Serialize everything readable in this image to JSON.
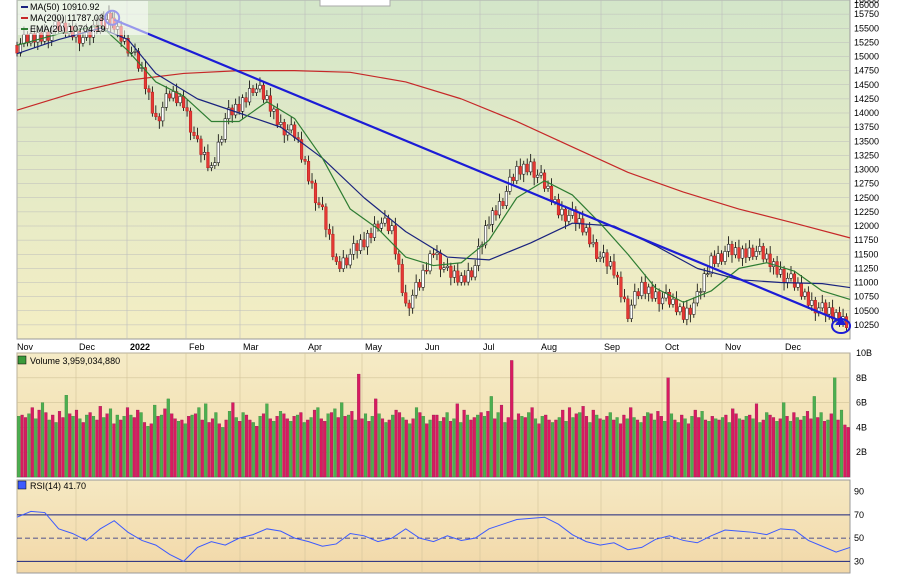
{
  "chart_data": [
    {
      "type": "line",
      "panel": "price",
      "y_axis": "right",
      "ylim": [
        10000,
        16000
      ],
      "y_ticks": [
        10250,
        10500,
        10750,
        11000,
        11250,
        11500,
        11750,
        12000,
        12250,
        12500,
        12750,
        13000,
        13250,
        13500,
        13750,
        14000,
        14250,
        14500,
        14750,
        15000,
        15250,
        15500,
        15750,
        16000
      ],
      "y_tick_labels": [
        "10250",
        "10500",
        "10750",
        "11000",
        "11250",
        "11500",
        "11750",
        "12000",
        "12250",
        "12500",
        "12750",
        "13000",
        "13250",
        "13500",
        "13750",
        "14000",
        "14250",
        "14500",
        "14750",
        "15000",
        "15250",
        "15500",
        "15750",
        "16000"
      ],
      "x_tick_labels": [
        "Nov",
        "Dec",
        "2022",
        "Feb",
        "Mar",
        "Apr",
        "May",
        "Jun",
        "Jul",
        "Aug",
        "Sep",
        "Oct",
        "Nov",
        "Dec"
      ],
      "legend": [
        {
          "label": "MA(50) 10910.92",
          "color": "#1a237e"
        },
        {
          "label": "MA(200) 11787.03",
          "color": "#c62828"
        },
        {
          "label": "EMA(20) 10704.19",
          "color": "#2e7d32"
        }
      ],
      "x_range": [
        0,
        60
      ],
      "series": [
        {
          "name": "Price",
          "color": "#000000",
          "x": [
            0,
            1,
            2,
            3,
            4,
            5,
            6,
            6.5,
            7,
            8,
            9,
            10,
            11,
            12,
            13,
            14,
            15,
            16,
            17,
            18,
            19,
            20,
            21,
            22,
            23,
            24,
            25,
            26,
            27,
            28,
            29,
            30,
            31,
            32,
            33,
            34,
            35,
            36,
            37,
            38,
            39,
            40,
            41,
            42,
            43,
            44,
            45,
            46,
            47,
            48,
            49,
            50,
            51,
            52,
            53,
            54,
            55,
            56,
            57,
            58,
            59,
            60
          ],
          "values": [
            15200,
            15300,
            15400,
            15500,
            15450,
            15300,
            15600,
            15650,
            15550,
            15200,
            14700,
            13900,
            14300,
            14200,
            13400,
            13000,
            13900,
            14100,
            14500,
            14200,
            13800,
            13600,
            12900,
            12200,
            11300,
            11500,
            11700,
            12100,
            11900,
            10600,
            10950,
            11600,
            11150,
            11050,
            11300,
            12100,
            12500,
            12950,
            13100,
            12700,
            12300,
            12150,
            11900,
            11450,
            11200,
            10500,
            10900,
            10800,
            10650,
            10450,
            10700,
            11400,
            11550,
            11500,
            11600,
            11400,
            11200,
            10950,
            10700,
            10500,
            10400,
            10320
          ]
        },
        {
          "name": "MA(50)",
          "color": "#1a237e",
          "x": [
            0,
            3,
            6,
            8,
            10,
            13,
            16,
            19,
            22,
            25,
            28,
            31,
            34,
            37,
            40,
            43,
            46,
            49,
            52,
            55,
            58,
            60
          ],
          "values": [
            15050,
            15300,
            15500,
            15300,
            14700,
            14250,
            14000,
            13750,
            13200,
            12500,
            11900,
            11450,
            11400,
            11700,
            12050,
            12000,
            11650,
            11250,
            11050,
            11000,
            10980,
            10910
          ]
        },
        {
          "name": "MA(200)",
          "color": "#c62828",
          "x": [
            0,
            4,
            8,
            12,
            16,
            20,
            24,
            28,
            32,
            36,
            40,
            44,
            48,
            52,
            56,
            60
          ],
          "values": [
            14050,
            14350,
            14580,
            14700,
            14750,
            14750,
            14720,
            14550,
            14250,
            13850,
            13400,
            12950,
            12600,
            12300,
            12050,
            11790
          ]
        },
        {
          "name": "EMA(20)",
          "color": "#2e7d32",
          "x": [
            0,
            3,
            6,
            8,
            10,
            12,
            14,
            16,
            18,
            20,
            22,
            24,
            26,
            28,
            30,
            32,
            34,
            36,
            38,
            40,
            42,
            44,
            46,
            48,
            50,
            52,
            54,
            56,
            58,
            60
          ],
          "values": [
            15200,
            15400,
            15550,
            15100,
            14550,
            14300,
            13850,
            13850,
            14200,
            13900,
            13200,
            12300,
            11950,
            11450,
            11300,
            11350,
            11750,
            12500,
            12800,
            12550,
            12050,
            11500,
            10900,
            10650,
            10850,
            11250,
            11350,
            11200,
            10850,
            10700
          ]
        },
        {
          "name": "Trendline",
          "color": "#1c1cd6",
          "x": [
            7,
            59.5
          ],
          "values": [
            15650,
            10300
          ]
        }
      ]
    },
    {
      "type": "bar",
      "panel": "volume",
      "y_axis": "right",
      "ylim": [
        0,
        10000000000
      ],
      "y_ticks": [
        2000000000,
        4000000000,
        6000000000,
        8000000000,
        10000000000
      ],
      "y_tick_labels": [
        "2B",
        "4B",
        "6B",
        "8B",
        "10B"
      ],
      "legend": [
        {
          "label": "Volume 3,959,034,880",
          "color": "#000000"
        }
      ],
      "values": [
        4.9,
        5.0,
        4.8,
        5.1,
        5.6,
        4.7,
        5.4,
        6.0,
        5.2,
        4.6,
        5.0,
        4.4,
        5.3,
        4.8,
        6.6,
        5.1,
        4.9,
        5.4,
        4.7,
        4.4,
        5.0,
        5.2,
        4.9,
        4.6,
        5.7,
        4.8,
        5.1,
        5.5,
        4.3,
        5.0,
        4.6,
        4.9,
        5.6,
        5.0,
        4.8,
        5.4,
        5.2,
        4.4,
        4.1,
        4.3,
        5.8,
        4.9,
        5.0,
        5.5,
        6.3,
        5.1,
        4.7,
        4.5,
        4.6,
        4.3,
        4.9,
        5.0,
        5.1,
        5.6,
        4.6,
        5.9,
        4.4,
        4.7,
        5.2,
        4.3,
        4.0,
        4.6,
        5.3,
        6.0,
        4.8,
        4.5,
        5.2,
        5.0,
        4.6,
        4.4,
        4.1,
        4.9,
        5.1,
        5.9,
        4.7,
        4.5,
        4.9,
        5.3,
        5.1,
        4.7,
        4.5,
        4.9,
        5.0,
        5.2,
        4.4,
        4.6,
        4.8,
        5.4,
        5.6,
        4.7,
        4.5,
        5.1,
        5.2,
        5.5,
        4.8,
        6.0,
        4.9,
        5.0,
        5.3,
        4.6,
        8.3,
        4.7,
        5.1,
        4.5,
        4.9,
        6.3,
        5.1,
        4.7,
        4.4,
        4.6,
        5.0,
        5.4,
        5.2,
        4.8,
        4.6,
        4.3,
        4.7,
        5.6,
        5.2,
        4.9,
        4.3,
        4.6,
        5.0,
        5.0,
        4.5,
        4.8,
        5.2,
        4.5,
        4.7,
        5.9,
        4.4,
        5.4,
        5.0,
        4.6,
        4.8,
        5.0,
        5.2,
        4.9,
        5.3,
        6.5,
        4.7,
        5.2,
        5.8,
        4.4,
        4.8,
        9.4,
        4.6,
        5.1,
        4.9,
        4.8,
        5.2,
        5.6,
        4.7,
        4.3,
        4.9,
        5.0,
        4.6,
        4.4,
        4.6,
        4.8,
        5.4,
        4.5,
        5.6,
        4.8,
        5.1,
        5.2,
        5.7,
        4.9,
        4.4,
        5.4,
        5.0,
        4.7,
        4.6,
        4.9,
        5.2,
        4.6,
        4.8,
        4.3,
        5.0,
        4.7,
        5.6,
        4.8,
        4.6,
        4.4,
        4.9,
        5.2,
        5.1,
        4.6,
        5.3,
        4.9,
        4.5,
        8.0,
        5.1,
        4.6,
        4.4,
        5.0,
        4.7,
        4.3,
        4.9,
        5.4,
        4.8,
        5.3,
        4.6,
        4.5,
        4.9,
        4.7,
        4.6,
        4.8,
        5.0,
        4.4,
        5.5,
        5.1,
        4.7,
        4.6,
        4.9,
        5.0,
        4.7,
        5.9,
        4.4,
        4.6,
        5.2,
        5.0,
        4.8,
        4.5,
        4.7,
        6.0,
        4.9,
        4.5,
        5.2,
        4.8,
        4.6,
        4.9,
        5.3,
        4.7,
        6.5,
        4.8,
        5.2,
        4.5,
        4.6,
        5.1,
        8.0,
        4.6,
        5.4,
        4.2,
        4.0
      ],
      "value_unit_note": "billions"
    },
    {
      "type": "line",
      "panel": "rsi",
      "y_axis": "right",
      "ylim": [
        20,
        100
      ],
      "y_ticks": [
        30,
        50,
        70,
        90
      ],
      "y_tick_labels": [
        "30",
        "50",
        "70",
        "90"
      ],
      "legend": [
        {
          "label": "RSI(14) 41.70",
          "color": "#3d5afe"
        }
      ],
      "series": [
        {
          "name": "RSI(14)",
          "color": "#3d5afe",
          "x": [
            0,
            1,
            2,
            3,
            4,
            5,
            6,
            7,
            8,
            9,
            10,
            11,
            12,
            13,
            14,
            15,
            16,
            17,
            18,
            19,
            20,
            21,
            22,
            23,
            24,
            25,
            26,
            27,
            28,
            29,
            30,
            31,
            32,
            33,
            34,
            35,
            36,
            37,
            38,
            39,
            40,
            41,
            42,
            43,
            44,
            45,
            46,
            47,
            48,
            49,
            50,
            51,
            52,
            53,
            54,
            55,
            56,
            57,
            58,
            59,
            60
          ],
          "values": [
            68,
            73,
            72,
            58,
            54,
            48,
            58,
            65,
            55,
            48,
            44,
            36,
            30,
            42,
            47,
            44,
            50,
            53,
            58,
            56,
            50,
            47,
            43,
            45,
            54,
            52,
            47,
            50,
            58,
            50,
            47,
            52,
            48,
            50,
            58,
            62,
            66,
            67,
            68,
            62,
            53,
            47,
            44,
            46,
            40,
            42,
            49,
            52,
            48,
            46,
            52,
            57,
            56,
            55,
            53,
            58,
            57,
            48,
            43,
            38,
            42
          ]
        }
      ]
    }
  ]
}
